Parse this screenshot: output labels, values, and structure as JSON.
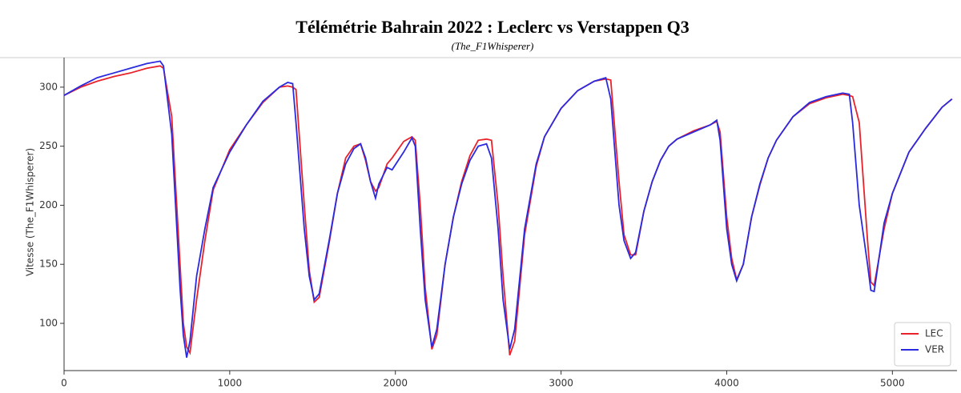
{
  "chart_data": {
    "type": "line",
    "title": "Télémétrie Bahrain 2022 : Leclerc vs Verstappen Q3",
    "subtitle": "(The_F1Whisperer)",
    "y_label": "Vitesse (The_F1Whisperer)",
    "x": [
      0,
      100,
      200,
      300,
      400,
      500,
      580,
      600,
      650,
      700,
      720,
      740,
      760,
      800,
      850,
      900,
      1000,
      1100,
      1200,
      1300,
      1350,
      1380,
      1400,
      1450,
      1480,
      1510,
      1540,
      1600,
      1650,
      1700,
      1750,
      1790,
      1820,
      1850,
      1880,
      1900,
      1950,
      1980,
      2050,
      2100,
      2120,
      2150,
      2180,
      2220,
      2250,
      2300,
      2350,
      2400,
      2450,
      2500,
      2550,
      2580,
      2620,
      2650,
      2690,
      2720,
      2780,
      2850,
      2900,
      3000,
      3100,
      3200,
      3270,
      3300,
      3350,
      3380,
      3420,
      3450,
      3500,
      3550,
      3600,
      3650,
      3700,
      3800,
      3900,
      3940,
      3960,
      4000,
      4030,
      4060,
      4100,
      4150,
      4200,
      4250,
      4300,
      4400,
      4500,
      4600,
      4700,
      4740,
      4760,
      4800,
      4850,
      4870,
      4890,
      4950,
      5000,
      5100,
      5200,
      5300,
      5360
    ],
    "series": [
      {
        "name": "LEC",
        "color": "#e8222a",
        "values": [
          293,
          300,
          305,
          309,
          312,
          316,
          318,
          316,
          275,
          150,
          100,
          80,
          75,
          120,
          170,
          213,
          247,
          268,
          287,
          300,
          301,
          300,
          298,
          200,
          145,
          118,
          122,
          168,
          210,
          240,
          250,
          252,
          238,
          220,
          212,
          215,
          235,
          240,
          254,
          258,
          255,
          200,
          130,
          78,
          90,
          150,
          190,
          220,
          242,
          255,
          256,
          255,
          200,
          140,
          73,
          85,
          175,
          233,
          258,
          282,
          297,
          305,
          307,
          306,
          220,
          175,
          158,
          158,
          195,
          220,
          238,
          250,
          256,
          263,
          268,
          271,
          262,
          190,
          155,
          137,
          150,
          190,
          217,
          240,
          255,
          275,
          286,
          291,
          294,
          293,
          292,
          270,
          170,
          135,
          132,
          180,
          210,
          245,
          265,
          283,
          290
        ]
      },
      {
        "name": "VER",
        "color": "#2a2ae0",
        "values": [
          293,
          301,
          308,
          312,
          316,
          320,
          322,
          318,
          260,
          130,
          90,
          71,
          85,
          140,
          180,
          215,
          245,
          268,
          288,
          300,
          304,
          303,
          270,
          180,
          140,
          120,
          125,
          170,
          210,
          235,
          248,
          252,
          240,
          220,
          206,
          218,
          232,
          230,
          245,
          257,
          250,
          180,
          120,
          80,
          95,
          150,
          190,
          218,
          238,
          250,
          252,
          240,
          180,
          120,
          78,
          95,
          180,
          235,
          258,
          282,
          297,
          305,
          308,
          290,
          200,
          170,
          155,
          160,
          195,
          220,
          238,
          250,
          256,
          262,
          268,
          272,
          255,
          180,
          150,
          136,
          150,
          190,
          218,
          240,
          255,
          275,
          287,
          292,
          295,
          294,
          270,
          200,
          150,
          128,
          127,
          185,
          210,
          245,
          265,
          283,
          290
        ]
      }
    ],
    "xlim": [
      0,
      5390
    ],
    "xticks": [
      0,
      1000,
      2000,
      3000,
      4000,
      5000
    ],
    "ylim": [
      60,
      325
    ],
    "yticks": [
      100,
      150,
      200,
      250,
      300
    ],
    "legend": "lower right"
  }
}
